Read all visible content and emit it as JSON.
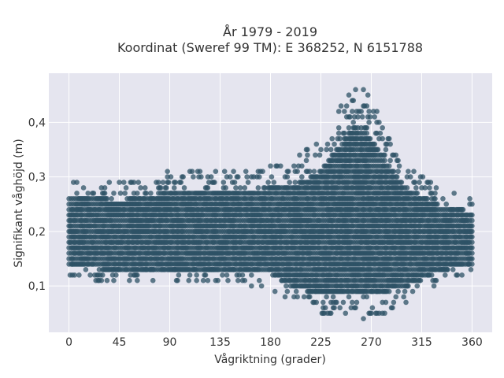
{
  "chart_data": {
    "type": "scatter",
    "title": "År 1979 - 2019",
    "subtitle": "Koordinat (Sweref 99 TM): E 368252, N 6151788",
    "xlabel": "Vågriktning (grader)",
    "ylabel": "Signifikant våghöjd (m)",
    "xlim": [
      -18,
      378
    ],
    "ylim": [
      0.015,
      0.49
    ],
    "xticks": [
      0,
      45,
      90,
      135,
      180,
      225,
      270,
      315,
      360
    ],
    "yticks": [
      0.1,
      0.2,
      0.3,
      0.4
    ],
    "ytick_labels": [
      "0,1",
      "0,2",
      "0,3",
      "0,4"
    ],
    "grid": true,
    "marker_color": "#2e5166",
    "plot_background": "#e5e5ef",
    "envelope": {
      "x": [
        0,
        45,
        90,
        135,
        180,
        200,
        225,
        245,
        255,
        265,
        280,
        300,
        330,
        360
      ],
      "y_low": [
        0.12,
        0.11,
        0.11,
        0.11,
        0.1,
        0.07,
        0.05,
        0.04,
        0.04,
        0.04,
        0.05,
        0.07,
        0.11,
        0.13
      ],
      "y_high": [
        0.3,
        0.29,
        0.31,
        0.31,
        0.32,
        0.33,
        0.37,
        0.44,
        0.47,
        0.46,
        0.4,
        0.33,
        0.28,
        0.26
      ]
    }
  }
}
